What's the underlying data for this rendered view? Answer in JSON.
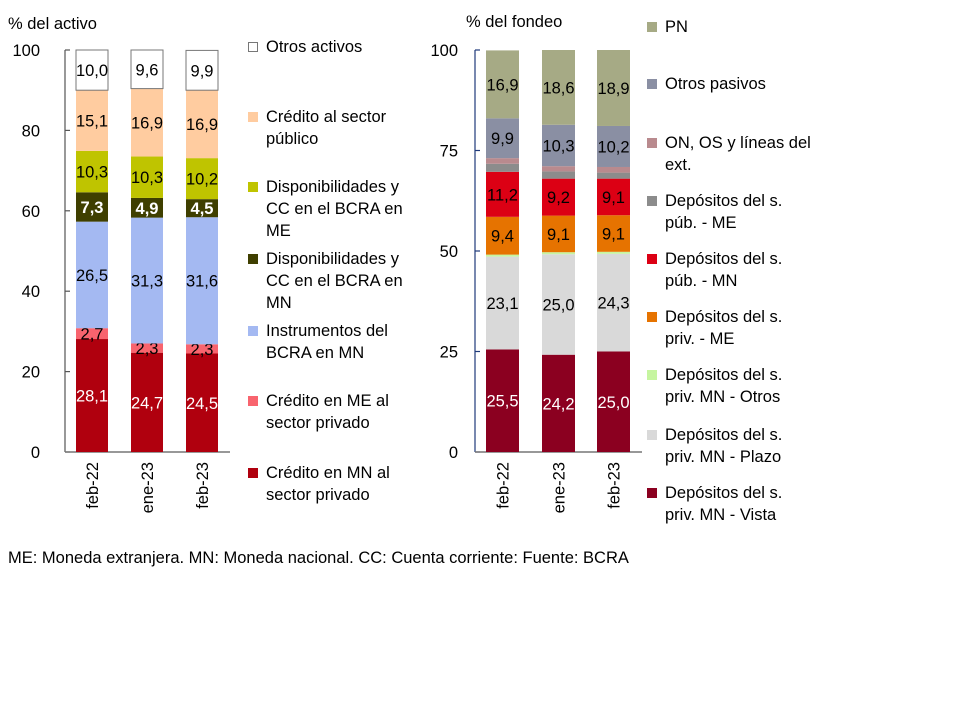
{
  "chart_data": [
    {
      "type": "bar",
      "stacked": true,
      "id": "activo",
      "ylabel": "% del activo",
      "ylim": [
        0,
        100
      ],
      "yticks": [
        0,
        20,
        40,
        60,
        80,
        100
      ],
      "categories": [
        "feb-22",
        "ene-23",
        "feb-23"
      ],
      "legend_placement": "right",
      "series": [
        {
          "name": "Crédito en MN al sector privado",
          "color": "#B0000E",
          "label_color": "#ffffff",
          "values": [
            28.1,
            24.7,
            24.5
          ],
          "labels": [
            "28,1",
            "24,7",
            "24,5"
          ]
        },
        {
          "name": "Crédito en ME al sector privado",
          "color": "#F8646E",
          "label_color": "#000000",
          "values": [
            2.7,
            2.3,
            2.3
          ],
          "labels": [
            "2,7",
            "2,3",
            "2,3"
          ]
        },
        {
          "name": "Instrumentos del BCRA en MN",
          "color": "#A4B9F2",
          "label_color": "#000000",
          "values": [
            26.5,
            31.3,
            31.6
          ],
          "labels": [
            "26,5",
            "31,3",
            "31,6"
          ]
        },
        {
          "name": "Disponibilidades y CC en el BCRA en MN",
          "color": "#3F3F00",
          "label_color": "#ffffff",
          "values": [
            7.3,
            4.9,
            4.5
          ],
          "labels": [
            "7,3",
            "4,9",
            "4,5"
          ]
        },
        {
          "name": "Disponibilidades y CC en el BCRA en ME",
          "color": "#BFC400",
          "label_color": "#000000",
          "values": [
            10.3,
            10.3,
            10.2
          ],
          "labels": [
            "10,3",
            "10,3",
            "10,2"
          ]
        },
        {
          "name": "Crédito al sector público",
          "color": "#FFCCA0",
          "label_color": "#000000",
          "values": [
            15.1,
            16.9,
            16.9
          ],
          "labels": [
            "15,1",
            "16,9",
            "16,9"
          ]
        },
        {
          "name": "Otros activos",
          "color": "#FFFFFF",
          "label_color": "#000000",
          "values": [
            10.0,
            9.6,
            9.9
          ],
          "labels": [
            "10,0",
            "9,6",
            "9,9"
          ]
        }
      ],
      "legend_order": [
        "Otros activos",
        "Crédito al sector público",
        "Disponibilidades y CC en el BCRA en ME",
        "Disponibilidades y CC en el BCRA en MN",
        "Instrumentos del BCRA en MN",
        "Crédito en ME al sector privado",
        "Crédito en MN al sector privado"
      ]
    },
    {
      "type": "bar",
      "stacked": true,
      "id": "fondeo",
      "ylabel": "% del fondeo",
      "ylim": [
        0,
        100
      ],
      "yticks": [
        0,
        25,
        50,
        75,
        100
      ],
      "categories": [
        "feb-22",
        "ene-23",
        "feb-23"
      ],
      "legend_placement": "right",
      "series": [
        {
          "name": "Depósitos del s. priv. MN - Vista",
          "color": "#8B0020",
          "label_color": "#ffffff",
          "values": [
            25.5,
            24.2,
            25.0
          ],
          "labels": [
            "25,5",
            "24,2",
            "25,0"
          ]
        },
        {
          "name": "Depósitos del s. priv. MN - Plazo",
          "color": "#D9D9D9",
          "label_color": "#000000",
          "values": [
            23.1,
            25.0,
            24.3
          ],
          "labels": [
            "23,1",
            "25,0",
            "24,3"
          ]
        },
        {
          "name": "Depósitos del s. priv. MN - Otros",
          "color": "#C6F5A0",
          "label_color": "#000000",
          "values": [
            0.5,
            0.5,
            0.5
          ],
          "labels": [
            "",
            "",
            ""
          ]
        },
        {
          "name": "Depósitos del s. priv. - ME",
          "color": "#E67300",
          "label_color": "#000000",
          "values": [
            9.4,
            9.1,
            9.1
          ],
          "labels": [
            "9,4",
            "9,1",
            "9,1"
          ]
        },
        {
          "name": "Depósitos del s. púb. - MN",
          "color": "#DC0014",
          "label_color": "#000000",
          "values": [
            11.2,
            9.2,
            9.1
          ],
          "labels": [
            "11,2",
            "9,2",
            "9,1"
          ]
        },
        {
          "name": "Depósitos del s. púb. - ME",
          "color": "#8C8C8C",
          "label_color": "#000000",
          "values": [
            2.0,
            1.8,
            1.5
          ],
          "labels": [
            "",
            "",
            ""
          ]
        },
        {
          "name": "ON, OS y líneas del ext.",
          "color": "#B98A8E",
          "label_color": "#000000",
          "values": [
            1.4,
            1.3,
            1.4
          ],
          "labels": [
            "",
            "",
            ""
          ]
        },
        {
          "name": "Otros pasivos",
          "color": "#8A8FA3",
          "label_color": "#000000",
          "values": [
            9.9,
            10.3,
            10.2
          ],
          "labels": [
            "9,9",
            "10,3",
            "10,2"
          ]
        },
        {
          "name": "PN",
          "color": "#A6AA85",
          "label_color": "#000000",
          "values": [
            16.9,
            18.6,
            18.9
          ],
          "labels": [
            "16,9",
            "18,6",
            "18,9"
          ]
        }
      ],
      "legend_order": [
        "PN",
        "Otros pasivos",
        "ON, OS y líneas del ext.",
        "Depósitos del s. púb. - ME",
        "Depósitos del s. púb. - MN",
        "Depósitos del s. priv. - ME",
        "Depósitos del s. priv. MN - Otros",
        "Depósitos del s. priv. MN - Plazo",
        "Depósitos del s. priv. MN - Vista"
      ]
    }
  ],
  "footnote": "ME: Moneda extranjera. MN: Moneda nacional. CC: Cuenta corriente: Fuente: BCRA"
}
